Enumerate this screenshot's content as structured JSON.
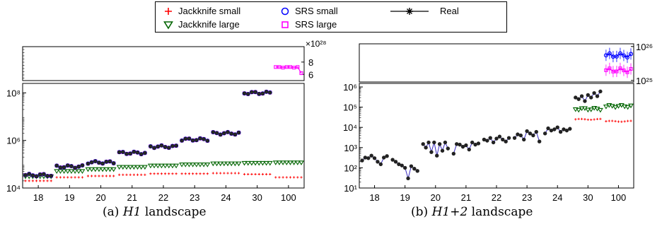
{
  "legend": [
    {
      "label": "Jackknife small",
      "color": "#ff0000",
      "marker": "plus-icon"
    },
    {
      "label": "SRS small",
      "color": "#0000ff",
      "marker": "circle-icon"
    },
    {
      "label": "Real",
      "color": "#000000",
      "marker": "asterisk-line-icon"
    },
    {
      "label": "Jackknife large",
      "color": "#006400",
      "marker": "triangle-down-icon"
    },
    {
      "label": "SRS large",
      "color": "#ff00ff",
      "marker": "square-icon"
    }
  ],
  "captions": {
    "a": {
      "prefix": "(a) ",
      "italic": "H1",
      "suffix": " landscape"
    },
    "b": {
      "prefix": "(b) ",
      "italic": "H1+2",
      "suffix": " landscape"
    }
  },
  "chart_data": [
    {
      "type": "scatter",
      "panel": "a",
      "yscale": "log",
      "categories": [
        "18",
        "19",
        "20",
        "21",
        "22",
        "23",
        "24",
        "30",
        "100"
      ],
      "upper_axis": {
        "label_exponent": "×10²⁸",
        "tick_labels": [
          "8",
          "6"
        ],
        "ticks": [
          8,
          6
        ],
        "ylim": [
          5,
          10.5
        ],
        "srs_large_group_100_values": [
          7.2,
          7.2,
          7.1,
          7.2,
          7.2,
          7.1,
          7.2,
          6.2
        ]
      },
      "lower_axis": {
        "ylim": [
          10000,
          250000000
        ],
        "tick_labels": [
          "10⁸",
          "10⁶",
          "10⁴"
        ],
        "ticks": [
          100000000,
          1000000,
          10000
        ]
      },
      "points_per_group": 8,
      "series": [
        {
          "name": "Real",
          "group_levels": [
            35000,
            80000,
            120000,
            300000,
            550000,
            1100000,
            2000000,
            100000000,
            null
          ]
        },
        {
          "name": "SRS small",
          "group_levels": [
            35000,
            80000,
            120000,
            300000,
            550000,
            1100000,
            2000000,
            100000000,
            null
          ]
        },
        {
          "name": "SRS large",
          "group_levels": [
            35000,
            80000,
            120000,
            300000,
            550000,
            1100000,
            2000000,
            100000000,
            null
          ]
        },
        {
          "name": "Jackknife large",
          "group_levels": [
            30000,
            50000,
            60000,
            75000,
            85000,
            95000,
            105000,
            110000,
            115000
          ]
        },
        {
          "name": "Jackknife small",
          "group_levels": [
            20000,
            28000,
            32000,
            36000,
            40000,
            40000,
            42000,
            38000,
            28000
          ]
        }
      ]
    },
    {
      "type": "scatter",
      "panel": "b",
      "yscale": "log",
      "categories": [
        "18",
        "19",
        "20",
        "21",
        "22",
        "23",
        "24",
        "30",
        "100"
      ],
      "upper_axis": {
        "tick_labels": [
          "10²⁶",
          "10²⁵"
        ],
        "ticks": [
          1e+26,
          1e+25
        ],
        "ylim": [
          9e+24,
          1.2e+26
        ],
        "srs_small_group_100": 5.5e+25,
        "srs_large_group_100": 2e+25
      },
      "lower_axis": {
        "ylim": [
          10,
          1500000
        ],
        "tick_labels": [
          "10⁶",
          "10⁵",
          "10⁴",
          "10³",
          "10²",
          "10¹"
        ],
        "ticks": [
          1000000,
          100000,
          10000,
          1000,
          100,
          10
        ]
      },
      "series": [
        {
          "name": "Real",
          "groups": [
            [
              230,
              320,
              300,
              400,
              300,
              200,
              150,
              320,
              380
            ],
            [
              250,
              200,
              150,
              130,
              100,
              30,
              120,
              90,
              70
            ],
            [
              1500,
              1000,
              1800,
              600,
              1800,
              400,
              1500,
              700,
              1800,
              900
            ],
            [
              500,
              1500,
              1400,
              1100,
              1300,
              800,
              1800,
              1400,
              1600
            ],
            [
              2500,
              2200,
              3000,
              1800,
              2800,
              3500,
              2500,
              2000,
              3000
            ],
            [
              3000,
              4500,
              4000,
              2500,
              6500,
              5000,
              4000,
              6000,
              2000
            ],
            [
              5000,
              9000,
              7000,
              8000,
              10000,
              6000,
              8000,
              7000,
              8500
            ],
            [
              300000,
              250000,
              350000,
              200000,
              400000,
              300000,
              500000,
              350000,
              600000
            ],
            [
              null
            ]
          ]
        },
        {
          "name": "Jackknife large",
          "group_levels": [
            null,
            null,
            null,
            null,
            null,
            null,
            null,
            80000,
            110000
          ]
        },
        {
          "name": "Jackknife small",
          "group_levels": [
            null,
            null,
            null,
            null,
            null,
            null,
            null,
            25000,
            20000
          ]
        }
      ]
    }
  ]
}
